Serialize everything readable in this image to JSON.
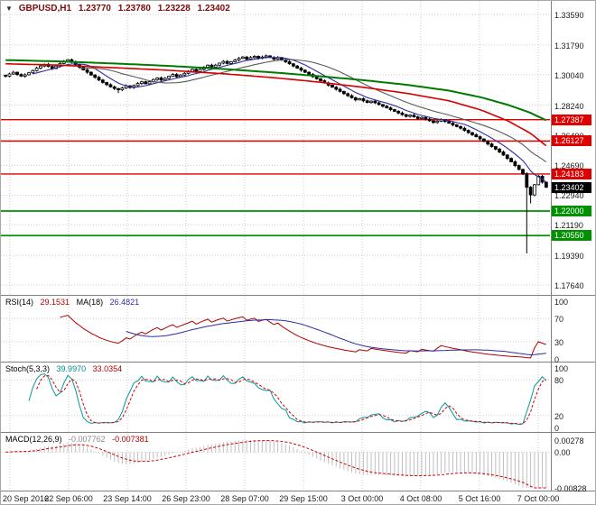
{
  "header": {
    "symbol_period": "GBPUSD,H1",
    "open": "1.23770",
    "high": "1.23780",
    "low": "1.23228",
    "close": "1.23402"
  },
  "colors": {
    "grid": "#cdcdcd",
    "separator": "#808080",
    "candle": "#000000",
    "bull_fill": "#ffffff",
    "bear_fill": "#000000",
    "ma_fast": "#2c2c9e",
    "ma_slow": "#5a5a5a",
    "trend_red": "#d40000",
    "trend_green": "#007a00",
    "rsi": "#b00000",
    "rsi_ma": "#2c2c9e",
    "stoch_k": "#009a9a",
    "stoch_d": "#d40000",
    "macd_hist": "#bfbfbf",
    "macd_signal": "#d40000",
    "current_price_tag": "#000000"
  },
  "chart_data": {
    "type": "candlestick",
    "symbol": "GBPUSD",
    "timeframe": "H1",
    "main": {
      "price_top": 1.3359,
      "price_bottom": 1.1764,
      "y_ticks": [
        "1.33590",
        "1.31790",
        "1.30040",
        "1.28240",
        "1.26490",
        "1.24690",
        "1.22940",
        "1.21190",
        "1.19390",
        "1.17640"
      ],
      "levels": [
        {
          "value": "1.27387",
          "price": 1.27387,
          "color": "#e00000",
          "width": 1.4,
          "line": true,
          "type": "resistance"
        },
        {
          "value": "1.26127",
          "price": 1.26127,
          "color": "#e00000",
          "width": 1.4,
          "line": true,
          "type": "resistance"
        },
        {
          "value": "1.24183",
          "price": 1.24183,
          "color": "#e00000",
          "width": 1.4,
          "line": true,
          "type": "resistance"
        },
        {
          "value": "1.22000",
          "price": 1.22,
          "color": "#009000",
          "width": 1.8,
          "line": true,
          "type": "support"
        },
        {
          "value": "1.20550",
          "price": 1.2055,
          "color": "#009000",
          "width": 1.8,
          "line": true,
          "type": "support"
        },
        {
          "value": "1.23402",
          "price": 1.23402,
          "color": "#000000",
          "line": false,
          "type": "current"
        }
      ],
      "closes": [
        1.2995,
        1.3008,
        1.3018,
        1.3005,
        1.2995,
        1.3003,
        1.3015,
        1.3028,
        1.3042,
        1.3055,
        1.3065,
        1.3052,
        1.304,
        1.3055,
        1.307,
        1.3082,
        1.3092,
        1.3078,
        1.3062,
        1.3048,
        1.3032,
        1.3018,
        1.3002,
        1.2988,
        1.2972,
        1.2958,
        1.2945,
        1.2932,
        1.2922,
        1.2915,
        1.2925,
        1.2938,
        1.2928,
        1.294,
        1.2952,
        1.2962,
        1.295,
        1.2962,
        1.2975,
        1.2985,
        1.2972,
        1.2982,
        1.2995,
        1.3005,
        1.2992,
        1.3002,
        1.3012,
        1.3022,
        1.3035,
        1.3022,
        1.3035,
        1.3048,
        1.306,
        1.3048,
        1.306,
        1.3072,
        1.3082,
        1.307,
        1.308,
        1.309,
        1.31,
        1.3108,
        1.3095,
        1.3105,
        1.3112,
        1.31,
        1.3108,
        1.3115,
        1.3105,
        1.3095,
        1.3105,
        1.3092,
        1.308,
        1.3068,
        1.3055,
        1.3042,
        1.303,
        1.3018,
        1.3005,
        1.2992,
        1.298,
        1.2968,
        1.2955,
        1.2942,
        1.293,
        1.2918,
        1.2905,
        1.2892,
        1.288,
        1.2868,
        1.2855,
        1.2862,
        1.285,
        1.284,
        1.2848,
        1.2838,
        1.2828,
        1.2818,
        1.2808,
        1.2798,
        1.2788,
        1.2778,
        1.2768,
        1.2758,
        1.2765,
        1.2755,
        1.2745,
        1.2752,
        1.2742,
        1.2732,
        1.2722,
        1.273,
        1.2738,
        1.2728,
        1.2718,
        1.2708,
        1.2698,
        1.2688,
        1.2675,
        1.2662,
        1.265,
        1.2638,
        1.2625,
        1.261,
        1.2595,
        1.258,
        1.2565,
        1.2548,
        1.253,
        1.251,
        1.249,
        1.2468,
        1.2445,
        1.242,
        1.234,
        1.2295,
        1.2355,
        1.2405,
        1.237,
        1.234
      ],
      "wick_overrides": {
        "29": {
          "low": 1.2895
        },
        "134": {
          "low": 1.195
        },
        "135": {
          "low": 1.2245
        }
      },
      "trend_red": [
        [
          0,
          1.3068
        ],
        [
          0.1,
          1.306
        ],
        [
          0.2,
          1.3045
        ],
        [
          0.3,
          1.303
        ],
        [
          0.4,
          1.301
        ],
        [
          0.5,
          1.2985
        ],
        [
          0.58,
          1.296
        ],
        [
          0.66,
          1.293
        ],
        [
          0.74,
          1.2895
        ],
        [
          0.82,
          1.285
        ],
        [
          0.88,
          1.2795
        ],
        [
          0.93,
          1.273
        ],
        [
          0.97,
          1.266
        ],
        [
          1.0,
          1.2585
        ]
      ],
      "trend_green": [
        [
          0,
          1.309
        ],
        [
          0.1,
          1.3082
        ],
        [
          0.2,
          1.307
        ],
        [
          0.3,
          1.3056
        ],
        [
          0.4,
          1.3038
        ],
        [
          0.5,
          1.3016
        ],
        [
          0.58,
          1.2995
        ],
        [
          0.66,
          1.2972
        ],
        [
          0.74,
          1.2945
        ],
        [
          0.82,
          1.291
        ],
        [
          0.88,
          1.287
        ],
        [
          0.93,
          1.2825
        ],
        [
          0.97,
          1.278
        ],
        [
          1.0,
          1.2735
        ]
      ]
    },
    "indicators": {
      "rsi": {
        "name": "RSI(14)",
        "value": "29.1531",
        "ma_name": "MA(18)",
        "ma_value": "26.4821",
        "ticks": [
          100,
          70,
          30,
          0
        ],
        "period": 14,
        "ma_period": 18
      },
      "stoch": {
        "name": "Stoch(5,3,3)",
        "k_value": "39.9970",
        "d_value": "33.0354",
        "ticks": [
          100,
          80,
          20,
          0
        ],
        "k_period": 5,
        "slowing": 3,
        "d_period": 3
      },
      "macd": {
        "name": "MACD(12,26,9)",
        "value": "-0.007762",
        "signal_value": "-0.007381",
        "fast": 12,
        "slow": 26,
        "signal": 9,
        "ticks": [
          {
            "v": 0.00278,
            "label": "0.00278"
          },
          {
            "v": 0,
            "label": "0.00"
          },
          {
            "v": -0.00828,
            "label": "-0.00828"
          }
        ]
      }
    },
    "x_axis": {
      "labels": [
        "20 Sep 2016",
        "22 Sep 06:00",
        "23 Sep 14:00",
        "26 Sep 23:00",
        "28 Sep 07:00",
        "29 Sep 15:00",
        "3 Oct 00:00",
        "4 Oct 08:00",
        "5 Oct 16:00",
        "7 Oct 00:00"
      ]
    }
  }
}
